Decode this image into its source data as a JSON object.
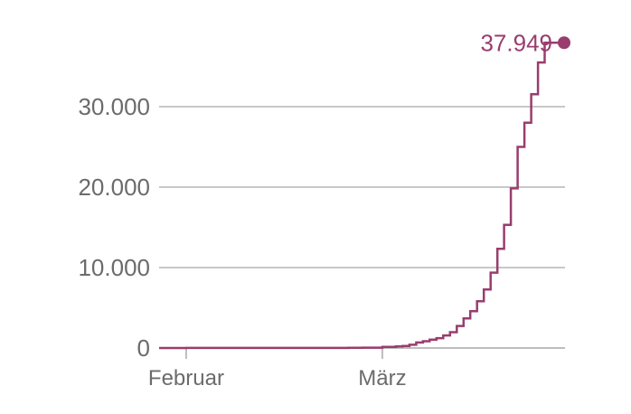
{
  "chart_data": {
    "type": "line",
    "step": true,
    "grid": true,
    "x_tick_labels": [
      "Februar",
      "März"
    ],
    "x_tick_dates": [
      "2020-02-01",
      "2020-03-01"
    ],
    "y_ticks": [
      0,
      10000,
      20000,
      30000
    ],
    "y_tick_labels": [
      "0",
      "10.000",
      "20.000",
      "30.000"
    ],
    "x_range": [
      "2020-01-28",
      "2020-03-28"
    ],
    "ylim": [
      0,
      37949
    ],
    "series_color": "#993d6e",
    "end_value_label": "37.949",
    "x": [
      "2020-01-28",
      "2020-02-01",
      "2020-02-10",
      "2020-02-20",
      "2020-02-25",
      "2020-02-27",
      "2020-03-01",
      "2020-03-03",
      "2020-03-04",
      "2020-03-05",
      "2020-03-06",
      "2020-03-07",
      "2020-03-08",
      "2020-03-09",
      "2020-03-10",
      "2020-03-11",
      "2020-03-12",
      "2020-03-13",
      "2020-03-14",
      "2020-03-15",
      "2020-03-16",
      "2020-03-17",
      "2020-03-18",
      "2020-03-19",
      "2020-03-20",
      "2020-03-21",
      "2020-03-22",
      "2020-03-23",
      "2020-03-24",
      "2020-03-25",
      "2020-03-26",
      "2020-03-27"
    ],
    "y": [
      4,
      10,
      16,
      16,
      18,
      46,
      130,
      196,
      262,
      400,
      684,
      847,
      1040,
      1224,
      1565,
      1966,
      2745,
      3675,
      4585,
      5813,
      7272,
      9367,
      12327,
      15320,
      19848,
      25000,
      28000,
      31554,
      35500,
      37949,
      37949,
      37949
    ]
  }
}
